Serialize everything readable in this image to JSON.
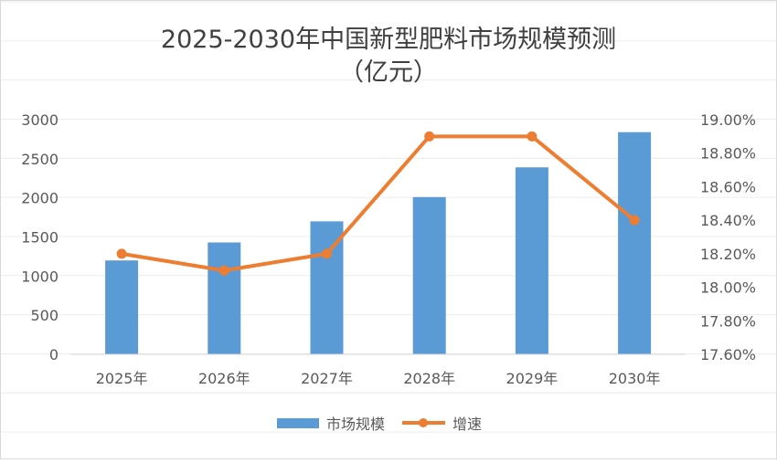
{
  "chart_data": {
    "type": "bar",
    "title": "2025-2030年中国新型肥料市场规模预测",
    "subtitle": "（亿元）",
    "categories": [
      "2025年",
      "2026年",
      "2027年",
      "2028年",
      "2029年",
      "2030年"
    ],
    "series": [
      {
        "name": "市场规模",
        "type": "bar",
        "axis": "left",
        "color": "#5B9BD5",
        "values": [
          1200,
          1430,
          1700,
          2010,
          2390,
          2840
        ]
      },
      {
        "name": "增速",
        "type": "line",
        "axis": "right",
        "color": "#ED7D31",
        "values": [
          18.2,
          18.1,
          18.2,
          18.9,
          18.9,
          18.4
        ]
      }
    ],
    "y_left": {
      "range": [
        0,
        3000
      ],
      "ticks": [
        "0",
        "500",
        "1000",
        "1500",
        "2000",
        "2500",
        "3000"
      ]
    },
    "y_right": {
      "range": [
        17.6,
        19.0
      ],
      "ticks": [
        "17.60%",
        "17.80%",
        "18.00%",
        "18.20%",
        "18.40%",
        "18.60%",
        "18.80%",
        "19.00%"
      ]
    },
    "legend": "bottom",
    "grid": true
  }
}
